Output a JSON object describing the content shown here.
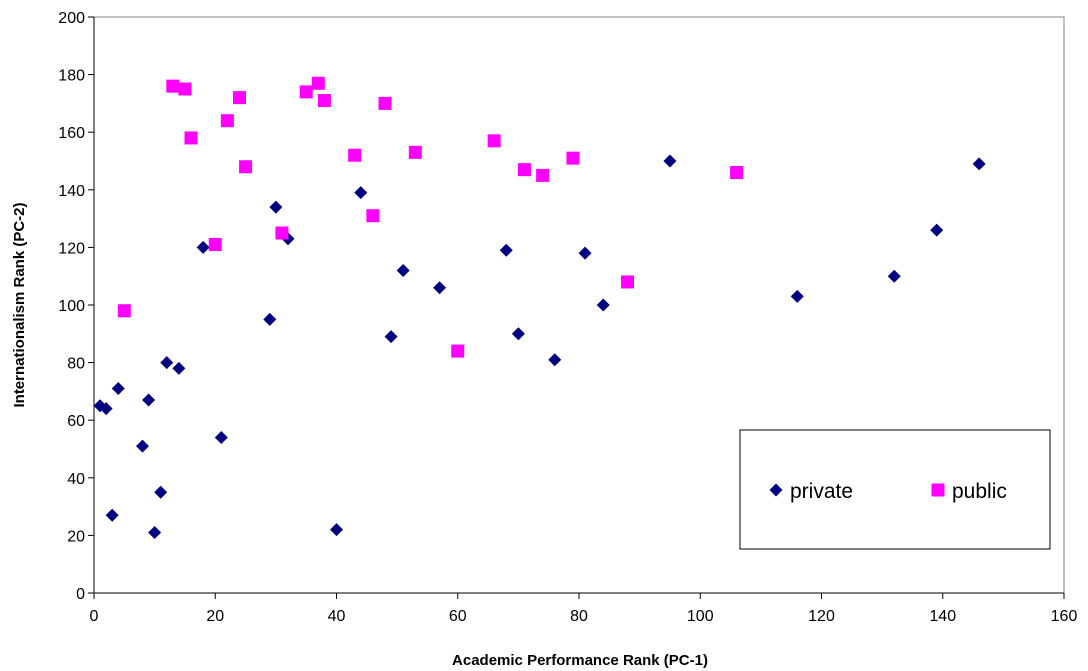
{
  "chart_data": {
    "type": "scatter",
    "xlabel": "Academic Performance Rank (PC-1)",
    "ylabel": "Internationalism Rank (PC-2)",
    "xlim": [
      0,
      160
    ],
    "ylim": [
      0,
      200
    ],
    "x_ticks": [
      0,
      20,
      40,
      60,
      80,
      100,
      120,
      140,
      160
    ],
    "y_ticks": [
      0,
      20,
      40,
      60,
      80,
      100,
      120,
      140,
      160,
      180,
      200
    ],
    "grid": false,
    "legend_position": "bottom-right",
    "series": [
      {
        "name": "private",
        "marker": "diamond",
        "color": "#000080",
        "points": [
          [
            1,
            65
          ],
          [
            2,
            64
          ],
          [
            3,
            27
          ],
          [
            4,
            71
          ],
          [
            8,
            51
          ],
          [
            9,
            67
          ],
          [
            10,
            21
          ],
          [
            11,
            35
          ],
          [
            12,
            80
          ],
          [
            14,
            78
          ],
          [
            18,
            120
          ],
          [
            21,
            54
          ],
          [
            29,
            95
          ],
          [
            30,
            134
          ],
          [
            32,
            123
          ],
          [
            40,
            22
          ],
          [
            44,
            139
          ],
          [
            49,
            89
          ],
          [
            51,
            112
          ],
          [
            57,
            106
          ],
          [
            68,
            119
          ],
          [
            70,
            90
          ],
          [
            76,
            81
          ],
          [
            81,
            118
          ],
          [
            84,
            100
          ],
          [
            95,
            150
          ],
          [
            116,
            103
          ],
          [
            132,
            110
          ],
          [
            139,
            126
          ],
          [
            146,
            149
          ]
        ]
      },
      {
        "name": "public",
        "marker": "square",
        "color": "#FF00FF",
        "points": [
          [
            5,
            98
          ],
          [
            13,
            176
          ],
          [
            15,
            175
          ],
          [
            16,
            158
          ],
          [
            20,
            121
          ],
          [
            22,
            164
          ],
          [
            24,
            172
          ],
          [
            25,
            148
          ],
          [
            31,
            125
          ],
          [
            35,
            174
          ],
          [
            37,
            177
          ],
          [
            38,
            171
          ],
          [
            43,
            152
          ],
          [
            46,
            131
          ],
          [
            48,
            170
          ],
          [
            53,
            153
          ],
          [
            60,
            84
          ],
          [
            66,
            157
          ],
          [
            71,
            147
          ],
          [
            74,
            145
          ],
          [
            79,
            151
          ],
          [
            88,
            108
          ],
          [
            106,
            146
          ]
        ]
      }
    ]
  }
}
